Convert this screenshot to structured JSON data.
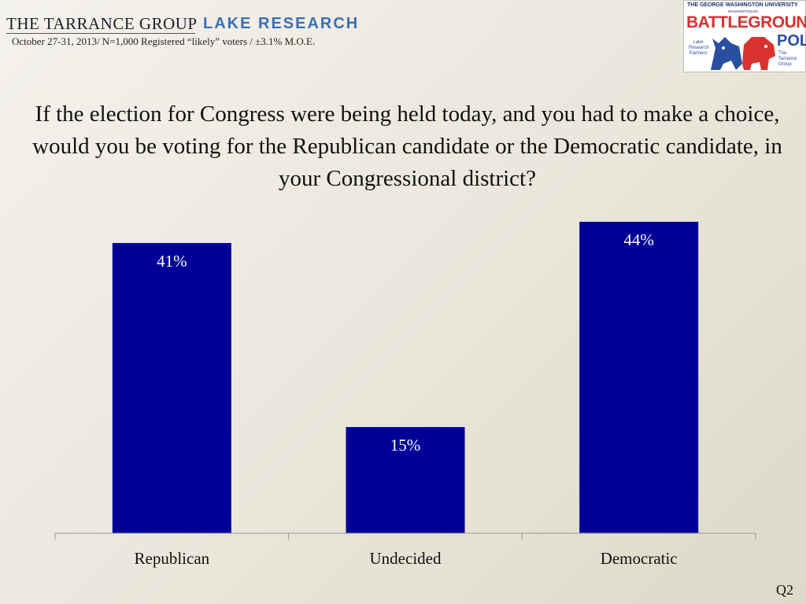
{
  "header": {
    "tarrance_name": "THE TARRANCE GROUP",
    "lake_name": "LAKE RESEARCH",
    "subtitle": "October 27-31, 2013/ N=1,000 Registered “likely” voters / ±3.1% M.O.E."
  },
  "logo": {
    "university": "THE GEORGE WASHINGTON UNIVERSITY",
    "location": "WASHINGTON DC",
    "title": "BATTLEGROUND",
    "poll": "POLL",
    "left_partner": "Lake Research Partners",
    "right_partner": "The Tarrance Group",
    "icon": "donkey-elephant-icon",
    "colors": {
      "red": "#d8322f",
      "blue": "#2b4fa0"
    }
  },
  "footnote": "Q2",
  "chart_data": {
    "type": "bar",
    "title": "If the election for Congress were being held today, and you had to make a choice, would you be voting for the Republican candidate or the Democratic candidate, in your Congressional district?",
    "categories": [
      "Republican",
      "Undecided",
      "Democratic"
    ],
    "values": [
      41,
      15,
      44
    ],
    "value_labels": [
      "41%",
      "15%",
      "44%"
    ],
    "ylim": [
      0,
      50
    ],
    "bar_color": "#000099",
    "label_color": "#ffffff",
    "grid": false,
    "legend": "none"
  }
}
